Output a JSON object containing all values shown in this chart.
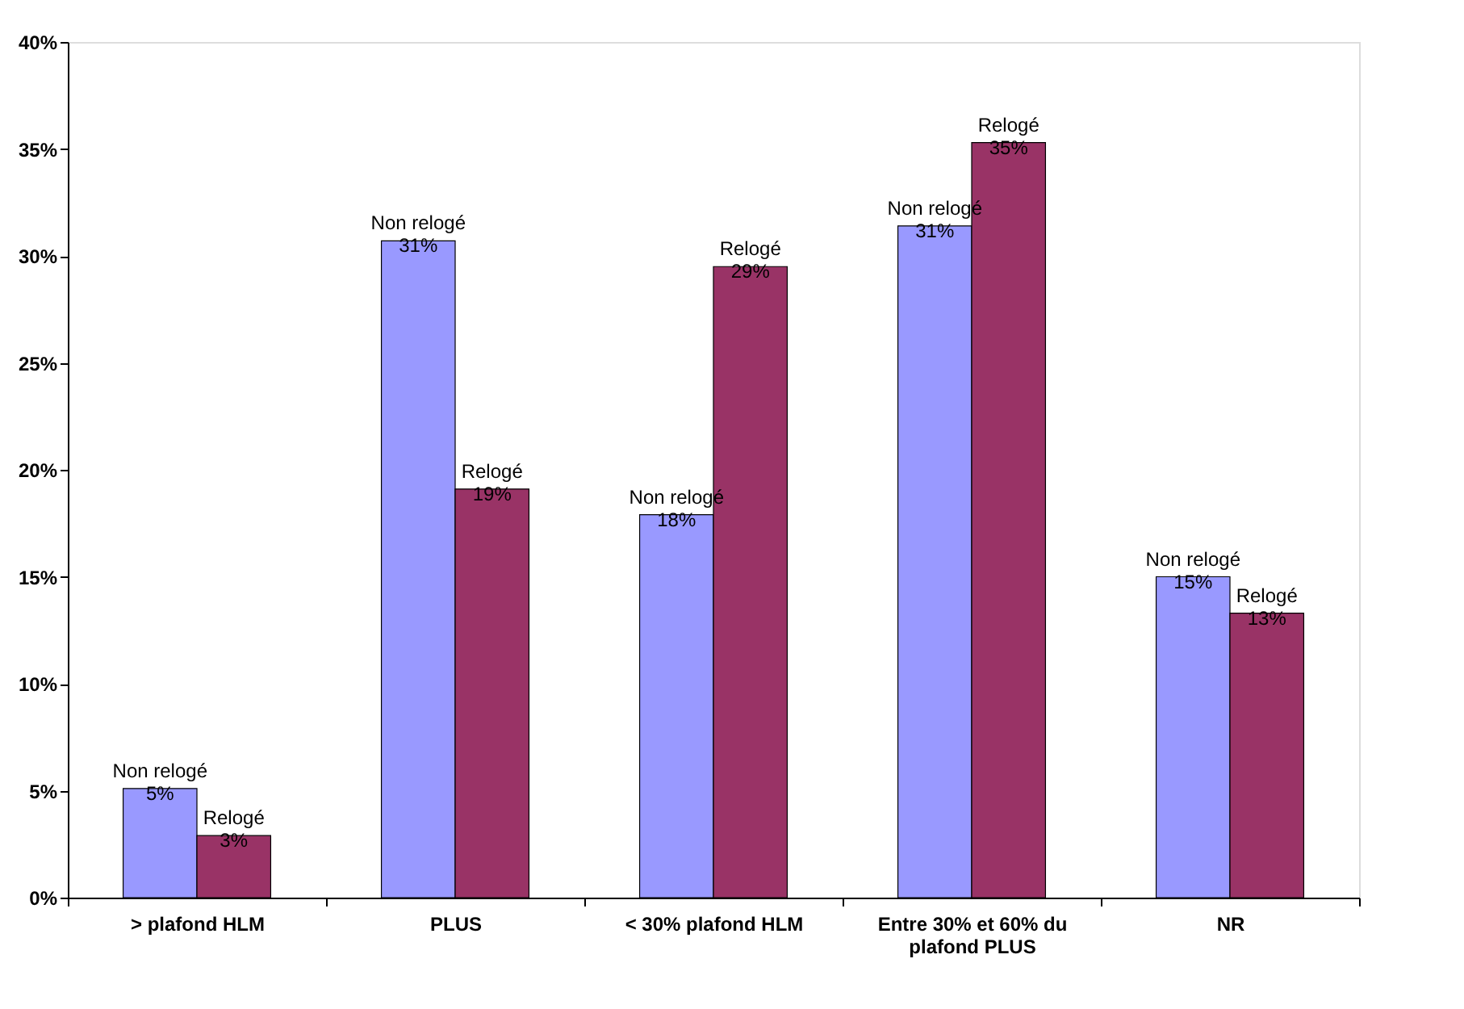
{
  "chart_data": {
    "type": "bar",
    "categories": [
      "> plafond HLM",
      "PLUS",
      "< 30% plafond HLM",
      "Entre 30% et 60% du plafond PLUS",
      "NR"
    ],
    "series": [
      {
        "name": "Non relogé",
        "color": "#9999ff",
        "values": [
          5.1,
          30.7,
          17.9,
          31.4,
          15.0
        ],
        "value_labels": [
          "5%",
          "31%",
          "18%",
          "31%",
          "15%"
        ]
      },
      {
        "name": "Relogé",
        "color": "#993366",
        "values": [
          2.9,
          19.1,
          29.5,
          35.3,
          13.3
        ],
        "value_labels": [
          "3%",
          "19%",
          "29%",
          "35%",
          "13%"
        ]
      }
    ],
    "ylim": [
      0,
      40
    ],
    "yticks": [
      {
        "value": 0,
        "label": "0%"
      },
      {
        "value": 5,
        "label": "5%"
      },
      {
        "value": 10,
        "label": "10%"
      },
      {
        "value": 15,
        "label": "15%"
      },
      {
        "value": 20,
        "label": "20%"
      },
      {
        "value": 25,
        "label": "25%"
      },
      {
        "value": 30,
        "label": "30%"
      },
      {
        "value": 35,
        "label": "35%"
      },
      {
        "value": 40,
        "label": "40%"
      }
    ],
    "grid": false,
    "legend": false
  }
}
